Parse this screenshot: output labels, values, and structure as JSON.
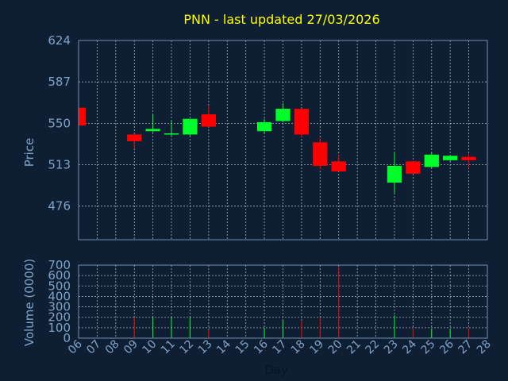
{
  "chart_data": {
    "type": "candlestick",
    "title": "PNN - last updated 27/03/2026",
    "xlabel": "Day",
    "ylabel": "Price",
    "volume_label": "Volume (0000)",
    "x_ticks": [
      "06",
      "07",
      "08",
      "09",
      "10",
      "11",
      "12",
      "13",
      "14",
      "15",
      "16",
      "17",
      "18",
      "19",
      "20",
      "21",
      "22",
      "23",
      "24",
      "25",
      "26",
      "27",
      "28"
    ],
    "price_ticks": [
      624,
      587,
      550,
      513,
      476
    ],
    "price_range": [
      446,
      624
    ],
    "volume_ticks": [
      700,
      600,
      500,
      400,
      300,
      200,
      100,
      0
    ],
    "volume_range": [
      0,
      700
    ],
    "colors": {
      "up": "#00ff2a",
      "down": "#ff0000",
      "background": "#0f1f33",
      "title": "#ffff00",
      "text": "#7fa3c8"
    },
    "candles": [
      {
        "day": "06",
        "open": 564,
        "high": 566,
        "low": 547,
        "close": 548,
        "volume": 0
      },
      {
        "day": "09",
        "open": 540,
        "high": 540,
        "low": 528,
        "close": 534,
        "volume": 200
      },
      {
        "day": "10",
        "open": 543,
        "high": 558,
        "low": 542,
        "close": 545,
        "volume": 200
      },
      {
        "day": "11",
        "open": 540,
        "high": 553,
        "low": 539,
        "close": 541,
        "volume": 200
      },
      {
        "day": "12",
        "open": 540,
        "high": 554,
        "low": 539,
        "close": 554,
        "volume": 200
      },
      {
        "day": "13",
        "open": 558,
        "high": 566,
        "low": 547,
        "close": 547,
        "volume": 80
      },
      {
        "day": "16",
        "open": 543,
        "high": 554,
        "low": 541,
        "close": 551,
        "volume": 100
      },
      {
        "day": "17",
        "open": 552,
        "high": 568,
        "low": 551,
        "close": 563,
        "volume": 170
      },
      {
        "day": "18",
        "open": 563,
        "high": 563,
        "low": 538,
        "close": 540,
        "volume": 170
      },
      {
        "day": "19",
        "open": 533,
        "high": 537,
        "low": 509,
        "close": 512,
        "volume": 200
      },
      {
        "day": "20",
        "open": 516,
        "high": 522,
        "low": 507,
        "close": 507,
        "volume": 680
      },
      {
        "day": "23",
        "open": 497,
        "high": 524,
        "low": 488,
        "close": 512,
        "volume": 220
      },
      {
        "day": "24",
        "open": 516,
        "high": 516,
        "low": 505,
        "close": 505,
        "volume": 90
      },
      {
        "day": "25",
        "open": 511,
        "high": 524,
        "low": 510,
        "close": 522,
        "volume": 90
      },
      {
        "day": "26",
        "open": 517,
        "high": 521,
        "low": 516,
        "close": 521,
        "volume": 90
      },
      {
        "day": "27",
        "open": 520,
        "high": 523,
        "low": 510,
        "close": 517,
        "volume": 90
      }
    ]
  }
}
